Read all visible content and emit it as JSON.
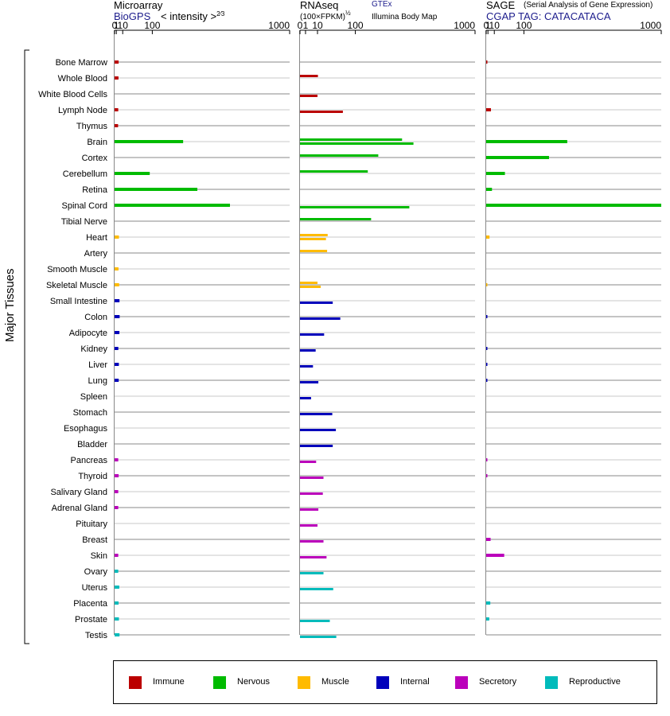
{
  "headers": {
    "microarray_title": "Microarray",
    "microarray_source": "BioGPS",
    "microarray_scale": "< intensity >",
    "microarray_scale_exp": "2⁄3",
    "rnaseq_title": "RNAseq",
    "rnaseq_unit": "(100×FPKM)",
    "rnaseq_unit_exp": "½",
    "rnaseq_source1": "GTEx",
    "rnaseq_source2": "Illumina Body Map",
    "sage_title": "SAGE",
    "sage_subtitle": "(Serial Analysis of Gene Expression)",
    "sage_tag": "CGAP TAG: CATACATACA"
  },
  "y_axis_label": "Major Tissues",
  "colors": {
    "Immune": "#bb0000",
    "Nervous": "#00bb00",
    "Muscle": "#ffbb00",
    "Internal": "#0000bb",
    "Secretory": "#bb00bb",
    "Reproductive": "#00bbbb"
  },
  "legend": [
    "Immune",
    "Nervous",
    "Muscle",
    "Internal",
    "Secretory",
    "Reproductive"
  ],
  "chart_data": [
    {
      "type": "bar",
      "title": "Microarray",
      "scale": "power 2/3",
      "ticks": [
        "0",
        "1",
        "10",
        "100",
        "1000"
      ],
      "tick_values": [
        0,
        1,
        10,
        100,
        1000
      ],
      "xlim": [
        0,
        1000
      ],
      "categories": [
        "Bone Marrow",
        "Whole Blood",
        "White Blood Cells",
        "Lymph Node",
        "Thymus",
        "Brain",
        "Cortex",
        "Cerebellum",
        "Retina",
        "Spinal Cord",
        "Tibial Nerve",
        "Heart",
        "Artery",
        "Smooth Muscle",
        "Skeletal Muscle",
        "Small Intestine",
        "Colon",
        "Adipocyte",
        "Kidney",
        "Liver",
        "Lung",
        "Spleen",
        "Stomach",
        "Esophagus",
        "Bladder",
        "Pancreas",
        "Thyroid",
        "Salivary Gland",
        "Adrenal Gland",
        "Pituitary",
        "Breast",
        "Skin",
        "Ovary",
        "Uterus",
        "Placenta",
        "Prostate",
        "Testis"
      ],
      "groups": [
        "Immune",
        "Immune",
        "Immune",
        "Immune",
        "Immune",
        "Nervous",
        "Nervous",
        "Nervous",
        "Nervous",
        "Nervous",
        "Nervous",
        "Muscle",
        "Muscle",
        "Muscle",
        "Muscle",
        "Internal",
        "Internal",
        "Internal",
        "Internal",
        "Internal",
        "Internal",
        "Internal",
        "Internal",
        "Internal",
        "Internal",
        "Secretory",
        "Secretory",
        "Secretory",
        "Secretory",
        "Secretory",
        "Secretory",
        "Secretory",
        "Reproductive",
        "Reproductive",
        "Reproductive",
        "Reproductive",
        "Reproductive"
      ],
      "values": [
        3.5,
        3.3,
        null,
        3.0,
        2.8,
        245,
        null,
        90,
        325,
        535,
        null,
        3.9,
        null,
        3.3,
        4.2,
        4.7,
        4.9,
        4.6,
        3.1,
        3.8,
        3.6,
        null,
        null,
        null,
        null,
        3.0,
        3.5,
        3.0,
        3.0,
        null,
        null,
        3.0,
        3.0,
        4.4,
        3.4,
        3.9,
        4.7
      ]
    },
    {
      "type": "bar",
      "title": "RNAseq",
      "scale": "square root",
      "ticks": [
        "0",
        "1",
        "10",
        "100",
        "1000"
      ],
      "tick_values": [
        0,
        1,
        10,
        100,
        1000
      ],
      "xlim": [
        0,
        1000
      ],
      "series": [
        {
          "name": "GTEx",
          "values": [
            null,
            10.5,
            null,
            null,
            null,
            340,
            200,
            150,
            null,
            null,
            165,
            25,
            24,
            null,
            10,
            null,
            null,
            null,
            null,
            null,
            null,
            null,
            null,
            null,
            null,
            null,
            null,
            null,
            null,
            null,
            null,
            null,
            null,
            null,
            null,
            null,
            null
          ]
        },
        {
          "name": "Illumina Body Map",
          "values": [
            null,
            null,
            10,
            60,
            null,
            420,
            null,
            null,
            null,
            390,
            null,
            22,
            null,
            null,
            14,
            35,
            53,
            19,
            8,
            5.5,
            11,
            4,
            34,
            42,
            35,
            8.5,
            18,
            17,
            11,
            10,
            18,
            23,
            18,
            36,
            null,
            29,
            43
          ]
        }
      ]
    },
    {
      "type": "bar",
      "title": "SAGE",
      "scale": "power 2/3",
      "ticks": [
        "0",
        "1",
        "10",
        "100",
        "1000"
      ],
      "tick_values": [
        0,
        1,
        10,
        100,
        1000
      ],
      "xlim": [
        0,
        1000
      ],
      "values": [
        0.04,
        null,
        null,
        4.5,
        null,
        315,
        215,
        35,
        6,
        1000,
        null,
        2.6,
        null,
        null,
        0.01,
        null,
        0.02,
        null,
        0.03,
        0.02,
        0.02,
        null,
        null,
        null,
        null,
        0.02,
        0.02,
        null,
        null,
        null,
        4.0,
        33,
        null,
        null,
        3.6,
        2.3,
        null
      ]
    }
  ]
}
